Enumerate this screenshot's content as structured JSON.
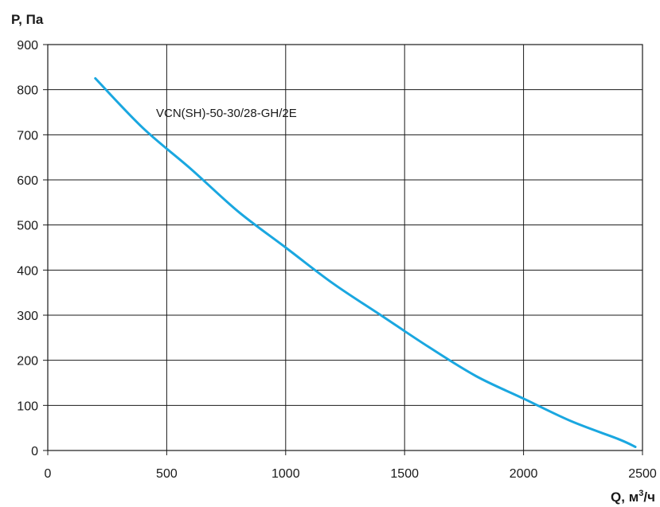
{
  "chart_data": {
    "type": "line",
    "title": "",
    "ylabel": "P, Па",
    "xlabel_main": "Q, м",
    "xlabel_sup": "3",
    "xlabel_tail": "/ч",
    "xlim": [
      0,
      2500
    ],
    "ylim": [
      0,
      900
    ],
    "x_ticks": [
      0,
      500,
      1000,
      1500,
      2000,
      2500
    ],
    "y_ticks": [
      0,
      100,
      200,
      300,
      400,
      500,
      600,
      700,
      800,
      900
    ],
    "grid": true,
    "series": [
      {
        "name": "VCN(SH)-50-30/28-GH/2E",
        "color": "#1aa7e0",
        "x": [
          200,
          400,
          600,
          800,
          1000,
          1200,
          1400,
          1600,
          1800,
          2000,
          2200,
          2400,
          2470
        ],
        "y": [
          825,
          715,
          625,
          530,
          450,
          370,
          300,
          230,
          165,
          115,
          65,
          25,
          8
        ]
      }
    ],
    "annotation": "VCN(SH)-50-30/28-GH/2E"
  }
}
